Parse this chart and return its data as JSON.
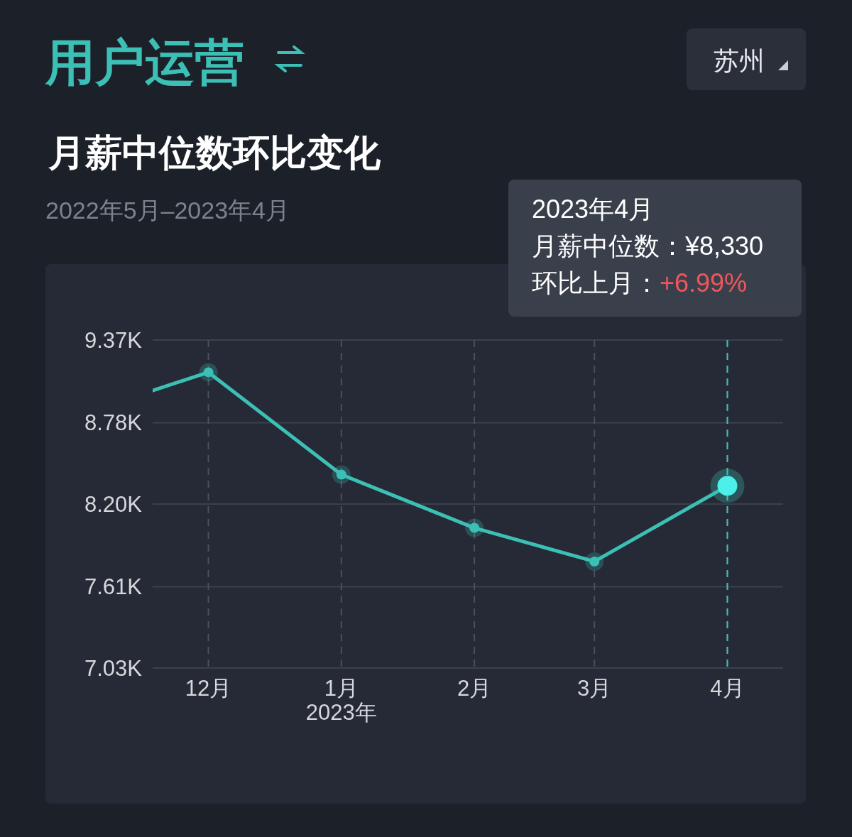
{
  "chart_data": {
    "type": "line",
    "title": "月薪中位数环比变化",
    "subtitle": "2022年5月–2023年4月",
    "x": [
      "2022-11-18",
      "2022-12",
      "2023-01",
      "2023-02",
      "2023-03",
      "2023-04"
    ],
    "series": [
      {
        "color": "#3cbfb5",
        "values": [
          9010,
          9140,
          8410,
          8030,
          7790,
          8330
        ]
      }
    ],
    "xlim": [
      "2022-11-18",
      "2023-04-14"
    ],
    "xticks": [
      {
        "value": "2022-12",
        "label": "12月"
      },
      {
        "value": "2023-01",
        "label": "1月\n2023年"
      },
      {
        "value": "2023-02",
        "label": "2月"
      },
      {
        "value": "2023-03",
        "label": "3月"
      },
      {
        "value": "2023-04",
        "label": "4月"
      }
    ],
    "ylim": [
      7030,
      9370
    ],
    "yticks": [
      {
        "value": 7030,
        "label": "7.03K"
      },
      {
        "value": 7610,
        "label": "7.61K"
      },
      {
        "value": 8200,
        "label": "8.20K"
      },
      {
        "value": 8780,
        "label": "8.78K"
      },
      {
        "value": 9370,
        "label": "9.37K"
      }
    ],
    "grid": true,
    "marker": "circle",
    "ref_lines": [
      {
        "axis": "x",
        "value": "2023-04",
        "color": "#3cbfb5",
        "line_style": "dashed"
      }
    ],
    "annotations": [
      "用户运营",
      "苏州",
      "2023年4月",
      "月薪中位数：¥8,330",
      "环比上月：",
      "+6.99%"
    ]
  }
}
